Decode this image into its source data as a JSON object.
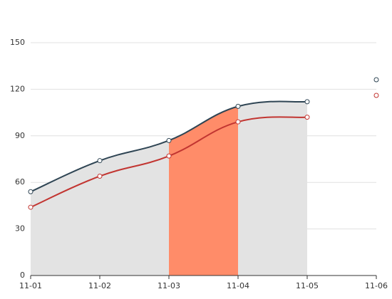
{
  "chart_data": {
    "type": "line",
    "categories": [
      "11-01",
      "11-02",
      "11-03",
      "11-04",
      "11-05",
      "11-06"
    ],
    "series": [
      {
        "color": "#2f4554",
        "values": [
          54,
          74,
          87,
          109,
          112,
          null
        ]
      },
      {
        "color": "#c23531",
        "values": [
          44,
          64,
          77,
          99,
          102,
          null
        ]
      }
    ],
    "area_color": "#e3e3e3",
    "highlight": {
      "from": "11-03",
      "to": "11-04",
      "color": "#ff8c69"
    },
    "ylim": [
      0,
      150
    ],
    "yticks": [
      0,
      30,
      60,
      90,
      120,
      150
    ],
    "grid": true
  }
}
